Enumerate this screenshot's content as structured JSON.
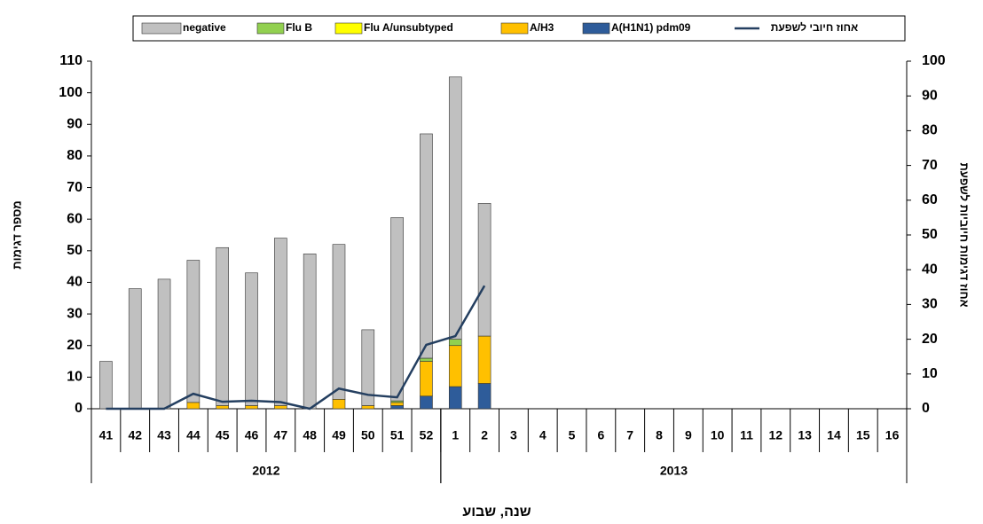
{
  "chart_data": {
    "type": "bar",
    "stacked": true,
    "groups": [
      {
        "name": "2012",
        "categories": [
          "41",
          "42",
          "43",
          "44",
          "45",
          "46",
          "47",
          "48",
          "49",
          "50",
          "51",
          "52"
        ]
      },
      {
        "name": "2013",
        "categories": [
          "1",
          "2",
          "3",
          "4",
          "5",
          "6",
          "7",
          "8",
          "9",
          "10",
          "11",
          "12",
          "13",
          "14",
          "15",
          "16"
        ]
      }
    ],
    "x_label": "שנה, שבוע",
    "y_label": "מספר דגימות",
    "y2_label": "אחוז דגימות חיוביות לשפעת",
    "ylim": [
      0,
      110
    ],
    "yticks": [
      0,
      10,
      20,
      30,
      40,
      50,
      60,
      70,
      80,
      90,
      100,
      110
    ],
    "y2lim": [
      0,
      100
    ],
    "y2ticks": [
      0,
      10,
      20,
      30,
      40,
      50,
      60,
      70,
      80,
      90,
      100
    ],
    "series": [
      {
        "name": "negative",
        "color": "#c0c0c0",
        "values": [
          15,
          38,
          41,
          45,
          50,
          42,
          53,
          49,
          49,
          24,
          58,
          71,
          83,
          42,
          null,
          null,
          null,
          null,
          null,
          null,
          null,
          null,
          null,
          null,
          null,
          null,
          null,
          null
        ]
      },
      {
        "name": "Flu B",
        "color": "#92d050",
        "values": [
          0,
          0,
          0,
          0,
          0,
          0,
          0,
          0,
          0,
          0,
          0.5,
          1,
          2,
          0,
          null,
          null,
          null,
          null,
          null,
          null,
          null,
          null,
          null,
          null,
          null,
          null,
          null,
          null
        ]
      },
      {
        "name": "Flu A/unsubtyped",
        "color": "#ffff00",
        "values": [
          0,
          0,
          0,
          0,
          0,
          0,
          0,
          0,
          0,
          0,
          0,
          0,
          0,
          0,
          null,
          null,
          null,
          null,
          null,
          null,
          null,
          null,
          null,
          null,
          null,
          null,
          null,
          null
        ]
      },
      {
        "name": "A/H3",
        "color": "#ffc000",
        "values": [
          0,
          0,
          0,
          2,
          1,
          1,
          1,
          0,
          3,
          1,
          1,
          11,
          13,
          15,
          null,
          null,
          null,
          null,
          null,
          null,
          null,
          null,
          null,
          null,
          null,
          null,
          null,
          null
        ]
      },
      {
        "name": "A(H1N1) pdm09",
        "color": "#2e5c9a",
        "values": [
          0,
          0,
          0,
          0,
          0,
          0,
          0,
          0,
          0,
          0,
          1,
          4,
          7,
          8,
          null,
          null,
          null,
          null,
          null,
          null,
          null,
          null,
          null,
          null,
          null,
          null,
          null,
          null
        ]
      },
      {
        "name": "אחוז חיובי לשפעת",
        "type": "line",
        "axis": "y2",
        "color": "#243f60",
        "values": [
          0,
          0,
          0,
          4.3,
          2,
          2.3,
          1.9,
          0,
          5.8,
          4,
          3.3,
          18.4,
          20.9,
          35.4,
          null,
          null,
          null,
          null,
          null,
          null,
          null,
          null,
          null,
          null,
          null,
          null,
          null,
          null
        ]
      }
    ]
  }
}
